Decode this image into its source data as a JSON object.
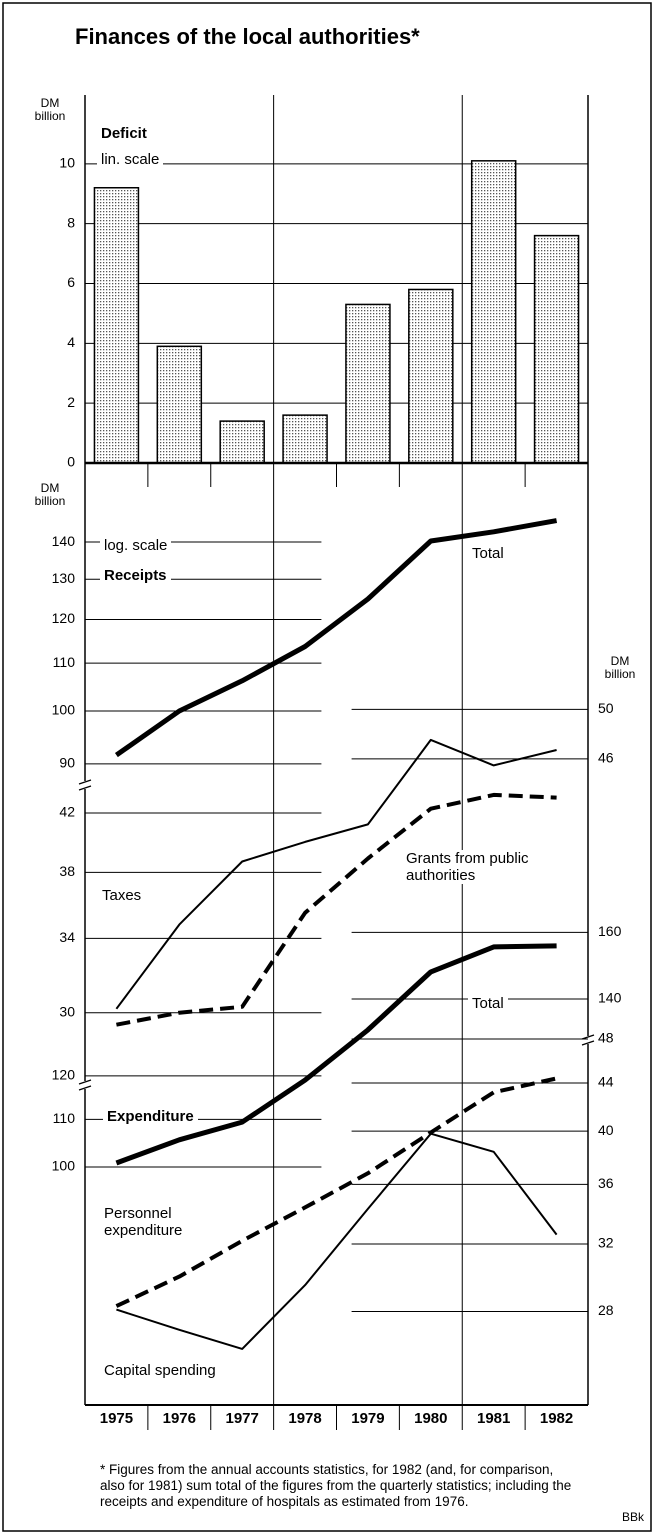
{
  "chart_data": {
    "title": "Finances of the local authorities*",
    "categories": [
      "1975",
      "1976",
      "1977",
      "1978",
      "1979",
      "1980",
      "1981",
      "1982"
    ],
    "panels": [
      {
        "type": "bar",
        "title": "Deficit",
        "subtitle": "lin. scale",
        "y_label": "DM billion",
        "values": [
          9.2,
          3.9,
          1.4,
          1.6,
          5.3,
          5.8,
          10.1,
          7.6
        ],
        "color": "#555555",
        "ylim": [
          0,
          12.3
        ],
        "yticks": [
          0,
          2,
          4,
          6,
          8,
          10
        ],
        "grid": true
      },
      {
        "type": "line",
        "title": "Receipts",
        "subtitle": "log. scale",
        "y_label": "DM billion",
        "log_scale": true,
        "ylim": [
          86.3,
          161.6
        ],
        "yticks": [
          90,
          100,
          110,
          120,
          130,
          140
        ],
        "grid": true,
        "series": [
          {
            "name": "Total",
            "color": "#000000",
            "style": "bold",
            "values": [
              91.6,
              100,
              106.2,
              113.7,
              125,
              140.3,
              142.9,
              146.1
            ]
          }
        ]
      },
      {
        "type": "line",
        "log_scale": true,
        "y2_label": "DM billion",
        "ylim": [
          25.9,
          50.8
        ],
        "yticks": [
          30,
          34,
          38,
          42
        ],
        "y2lim": [
          25.9,
          50.8
        ],
        "y2ticks": [
          46,
          50
        ],
        "grid": true,
        "series": [
          {
            "name": "Taxes",
            "color": "#000000",
            "style": "thin",
            "values": [
              30.2,
              34.8,
              38.7,
              40.0,
              41.2,
              47.5,
              45.5,
              46.7
            ]
          },
          {
            "name": "Grants from public authorities",
            "color": "#000000",
            "style": "dashed",
            "values": [
              29.4,
              30.0,
              30.3,
              35.5,
              38.9,
              42.3,
              43.3,
              43.1
            ]
          }
        ]
      },
      {
        "type": "line",
        "title": "Expenditure",
        "log_scale": true,
        "ylim": [
          62.7,
          170.7
        ],
        "yticks": [
          100,
          110,
          120
        ],
        "yticks_right": [
          140,
          160
        ],
        "y2lim": [
          23.5,
          63.2
        ],
        "y2ticks": [
          28,
          32,
          36,
          40,
          44,
          48
        ],
        "grid": true,
        "series": [
          {
            "name": "Total",
            "color": "#000000",
            "style": "bold",
            "values": [
              100.8,
              105.6,
              109.4,
              119.0,
              131.6,
              147.8,
              155.4,
              155.7
            ]
          },
          {
            "name": "Personnel expenditure",
            "color": "#000000",
            "style": "dashed",
            "axis": "y2",
            "values": [
              28.3,
              30.0,
              32.2,
              34.4,
              36.8,
              39.9,
              43.2,
              44.4
            ]
          },
          {
            "name": "Capital spending",
            "color": "#000000",
            "style": "thin",
            "axis": "y2",
            "values": [
              28.1,
              27.0,
              26.0,
              29.5,
              34.3,
              39.8,
              38.4,
              32.6
            ]
          }
        ]
      }
    ],
    "footnote": "* Figures from the annual accounts statistics, for 1982 (and, for comparison, also for 1981) sum total of the figures from the quarterly statistics; including the receipts and expenditure of hospitals as estimated from 1976.",
    "source": "BBk"
  }
}
